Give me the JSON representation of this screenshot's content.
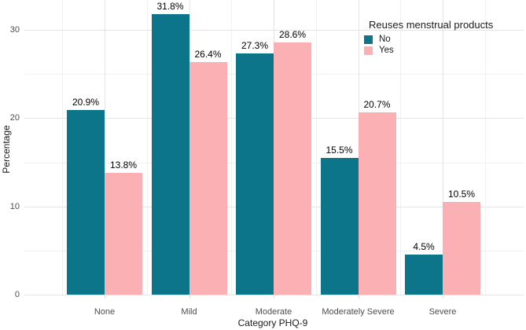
{
  "chart_data": {
    "type": "bar",
    "title": "",
    "xlabel": "Category PHQ-9",
    "ylabel": "Percentage",
    "legend_title": "Reuses menstrual products",
    "legend_position": "top-right-inside",
    "grid": true,
    "background": "#ffffff",
    "grid_color_major": "#e4e4e4",
    "grid_color_minor": "#f1f1f1",
    "categories": [
      "None",
      "Mild",
      "Moderate",
      "Moderately Severe",
      "Severe"
    ],
    "series": [
      {
        "name": "No",
        "color": "#0D7589",
        "values": [
          20.9,
          31.8,
          27.3,
          15.5,
          4.5
        ],
        "labels": [
          "20.9%",
          "31.8%",
          "27.3%",
          "15.5%",
          "4.5%"
        ]
      },
      {
        "name": "Yes",
        "color": "#FBB0B4",
        "values": [
          13.8,
          26.4,
          28.6,
          20.7,
          10.5
        ],
        "labels": [
          "13.8%",
          "26.4%",
          "28.6%",
          "20.7%",
          "10.5%"
        ]
      }
    ],
    "ylim": [
      0,
      33.4
    ],
    "yticks": [
      0,
      10,
      20,
      30
    ],
    "ytick_labels": [
      "0",
      "10",
      "20",
      "30"
    ],
    "yticks_minor": [
      5,
      15,
      25
    ]
  }
}
